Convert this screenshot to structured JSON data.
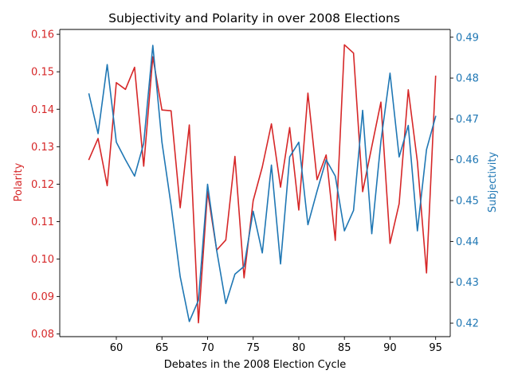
{
  "chart_data": {
    "type": "line",
    "title": "Subjectivity and Polarity in over 2008 Elections",
    "xlabel": "Debates in the 2008 Election Cycle",
    "ylabel_left": "Polarity",
    "ylabel_right": "Subjectivity",
    "xlim": [
      53.8,
      96.6
    ],
    "ylim_left": [
      0.0793,
      0.1613
    ],
    "ylim_right": [
      0.4167,
      0.4919
    ],
    "x_ticks": [
      "60",
      "65",
      "70",
      "75",
      "80",
      "85",
      "90",
      "95"
    ],
    "y_ticks_left": [
      "0.08",
      "0.09",
      "0.10",
      "0.11",
      "0.12",
      "0.13",
      "0.14",
      "0.15",
      "0.16"
    ],
    "y_ticks_right": [
      "0.42",
      "0.43",
      "0.44",
      "0.45",
      "0.46",
      "0.47",
      "0.48",
      "0.49"
    ],
    "x": [
      57,
      58,
      59,
      60,
      61,
      62,
      63,
      64,
      65,
      66,
      67,
      68,
      69,
      70,
      71,
      72,
      73,
      74,
      75,
      76,
      77,
      78,
      79,
      80,
      81,
      82,
      83,
      84,
      85,
      86,
      87,
      88,
      89,
      90,
      91,
      92,
      93,
      94,
      95
    ],
    "series": [
      {
        "name": "Polarity",
        "axis": "left",
        "color": "#d62728",
        "values": [
          0.1266,
          0.1322,
          0.1196,
          0.1471,
          0.1453,
          0.1512,
          0.1248,
          0.154,
          0.1398,
          0.1396,
          0.1137,
          0.1358,
          0.083,
          0.118,
          0.1024,
          0.1051,
          0.1274,
          0.095,
          0.1156,
          0.1246,
          0.1361,
          0.1192,
          0.1351,
          0.1131,
          0.1443,
          0.1212,
          0.1278,
          0.105,
          0.1572,
          0.155,
          0.118,
          0.13,
          0.1419,
          0.1042,
          0.1148,
          0.1452,
          0.126,
          0.0963,
          0.1488
        ]
      },
      {
        "name": "Subjectivity",
        "axis": "right",
        "color": "#1f77b4",
        "values": [
          0.4761,
          0.4664,
          0.4833,
          0.4643,
          0.46,
          0.456,
          0.464,
          0.488,
          0.4643,
          0.4489,
          0.4314,
          0.4204,
          0.4256,
          0.454,
          0.4378,
          0.4248,
          0.432,
          0.4339,
          0.4474,
          0.4372,
          0.4587,
          0.4345,
          0.4607,
          0.4643,
          0.4441,
          0.4523,
          0.46,
          0.456,
          0.4426,
          0.4476,
          0.4721,
          0.4419,
          0.4645,
          0.4812,
          0.4607,
          0.4684,
          0.4426,
          0.4625,
          0.4706
        ]
      }
    ]
  }
}
